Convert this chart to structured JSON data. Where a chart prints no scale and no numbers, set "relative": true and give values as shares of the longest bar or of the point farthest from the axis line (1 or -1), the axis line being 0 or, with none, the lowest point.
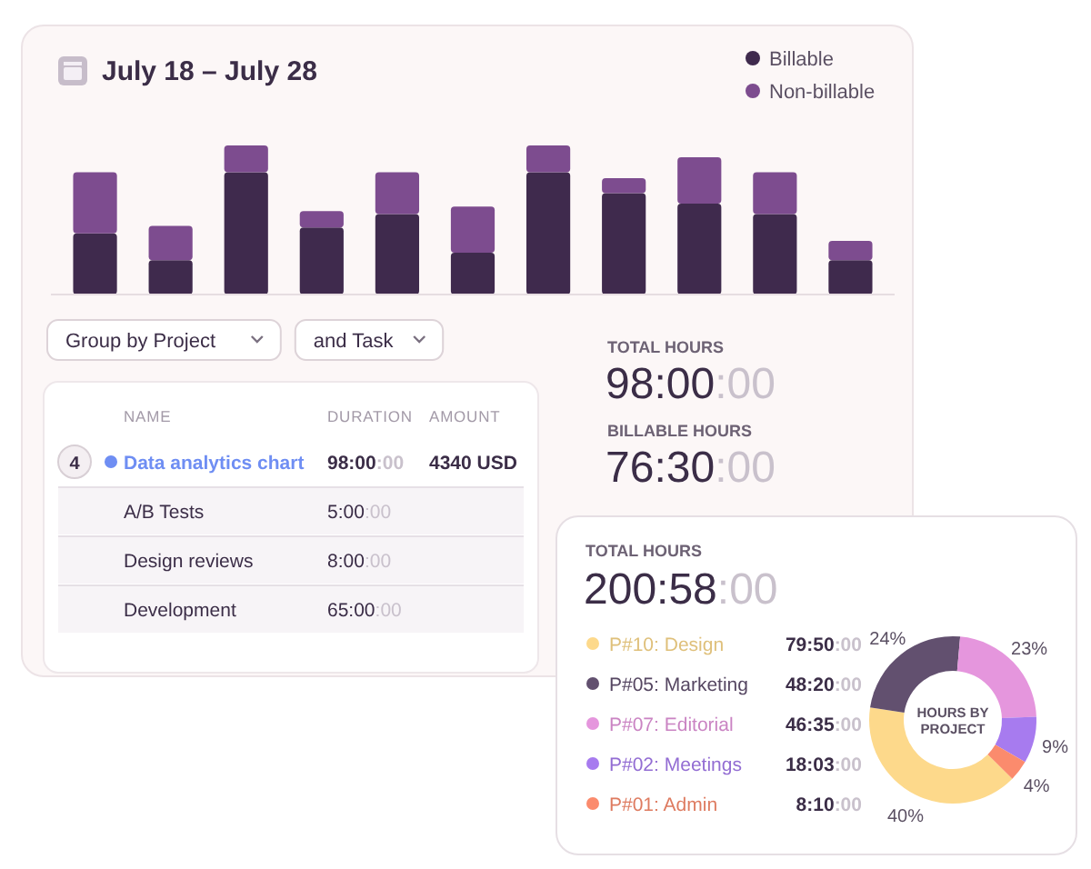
{
  "chart_data": [
    {
      "type": "bar",
      "title": "July 18 – July 28",
      "categories": [
        null,
        null,
        null,
        null,
        null,
        null,
        null,
        null,
        null,
        null,
        null
      ],
      "stacked": true,
      "relative": true,
      "legend": "top right",
      "series": [
        {
          "name": "Billable",
          "color": "#3f2a4d",
          "values": [
            0.41,
            0.23,
            0.82,
            0.45,
            0.54,
            0.28,
            0.82,
            0.68,
            0.61,
            0.54,
            0.23
          ]
        },
        {
          "name": "Non-billable",
          "color": "#7d4c8f",
          "values": [
            0.41,
            0.23,
            0.18,
            0.11,
            0.28,
            0.31,
            0.18,
            0.1,
            0.31,
            0.28,
            0.13
          ]
        }
      ],
      "annotations": [
        "TOTAL HOURS",
        "98:00:00",
        "BILLABLE HOURS",
        "76:30:00"
      ]
    },
    {
      "type": "other",
      "annotations": [
        "Group by Project",
        "and Task",
        "NAME",
        "DURATION",
        "AMOUNT",
        "4",
        "Data analytics chart",
        "98:00:00",
        "4340 USD",
        "A/B Tests",
        "5:00:00",
        "Design reviews",
        "8:00:00",
        "Development",
        "65:00:00"
      ]
    },
    {
      "type": "donut",
      "title": "HOURS BY PROJECT",
      "categories": [
        "P#10: Design",
        "P#05: Marketing",
        "P#07: Editorial",
        "P#02: Meetings",
        "P#01: Admin"
      ],
      "values": [
        40,
        24,
        23,
        9,
        4
      ],
      "colors": [
        "#fdd98b",
        "#62506f",
        "#e596dd",
        "#a77bef",
        "#fb8b6d"
      ],
      "value_labels": [
        "40%",
        "24%",
        "23%",
        "9%",
        "4%"
      ],
      "legend": "left",
      "annotations": [
        "TOTAL HOURS",
        "200:58:00",
        "79:50:00",
        "48:20:00",
        "46:35:00",
        "18:03:00",
        "8:10:00"
      ]
    }
  ]
}
